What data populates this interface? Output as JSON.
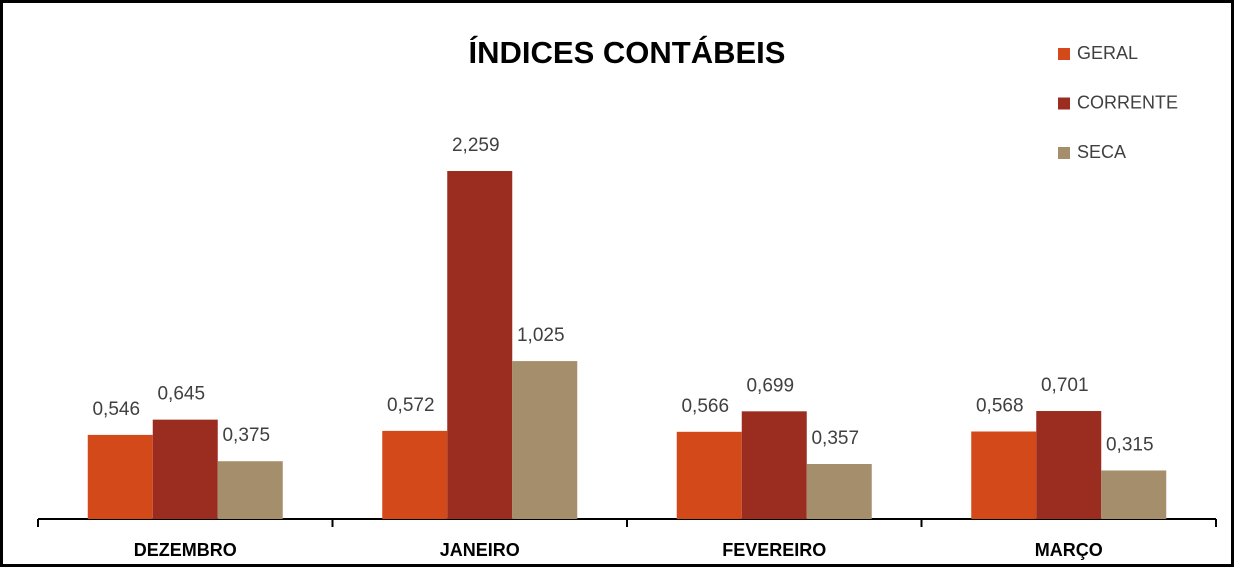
{
  "chart_data": {
    "type": "bar",
    "title": "ÍNDICES CONTÁBEIS",
    "categories": [
      "DEZEMBRO",
      "JANEIRO",
      "FEVEREIRO",
      "MARÇO"
    ],
    "series": [
      {
        "name": "GERAL",
        "color": "#d4491a",
        "values": [
          0.546,
          0.572,
          0.566,
          0.568
        ],
        "value_labels": [
          "0,546",
          "0,572",
          "0,566",
          "0,568"
        ]
      },
      {
        "name": "CORRENTE",
        "color": "#9b2d20",
        "values": [
          0.645,
          2.259,
          0.699,
          0.701
        ],
        "value_labels": [
          "0,645",
          "2,259",
          "0,699",
          "0,701"
        ]
      },
      {
        "name": "SECA",
        "color": "#a58e6b",
        "values": [
          0.375,
          1.025,
          0.357,
          0.315
        ],
        "value_labels": [
          "0,375",
          "1,025",
          "0,357",
          "0,315"
        ]
      }
    ],
    "legend": "top-right"
  }
}
